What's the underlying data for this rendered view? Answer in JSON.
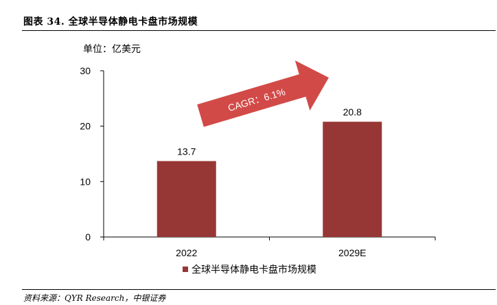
{
  "figure": {
    "title": "图表 34. 全球半导体静电卡盘市场规模",
    "unit_label": "单位：亿美元",
    "source": "资料来源：QYR Research，中银证券"
  },
  "chart_data": {
    "type": "bar",
    "categories": [
      "2022",
      "2029E"
    ],
    "series": [
      {
        "name": "全球半导体静电卡盘市场规模",
        "values": [
          13.7,
          20.8
        ]
      }
    ],
    "data_labels": [
      "13.7",
      "20.8"
    ],
    "ylim": [
      0,
      30
    ],
    "yticks": [
      0,
      10,
      20,
      30
    ],
    "grid": false,
    "legend_position": "bottom",
    "annotation": "CAGR：6.1%",
    "colors": {
      "bar": "#973735",
      "arrow": "#D24A47",
      "annotation_text": "#ffffff"
    }
  }
}
